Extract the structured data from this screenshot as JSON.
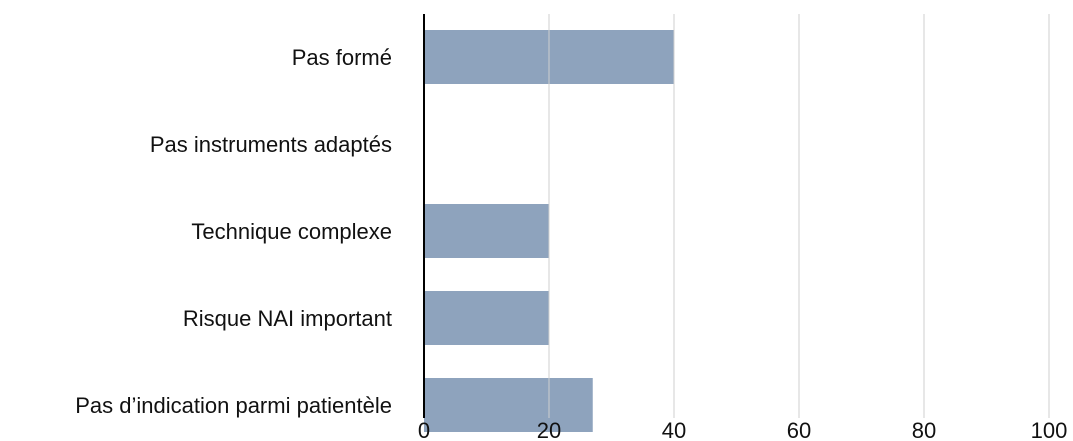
{
  "chart_data": {
    "type": "bar",
    "orientation": "horizontal",
    "categories": [
      "Pas formé",
      "Pas instruments adaptés",
      "Technique complexe",
      "Risque NAI important",
      "Pas d’indication parmi patientèle"
    ],
    "values": [
      40,
      0,
      20,
      20,
      27
    ],
    "xlim": [
      0,
      100
    ],
    "xticks": [
      0,
      20,
      40,
      60,
      80,
      100
    ],
    "grid": true,
    "bar_color": "#8ea3bd"
  }
}
